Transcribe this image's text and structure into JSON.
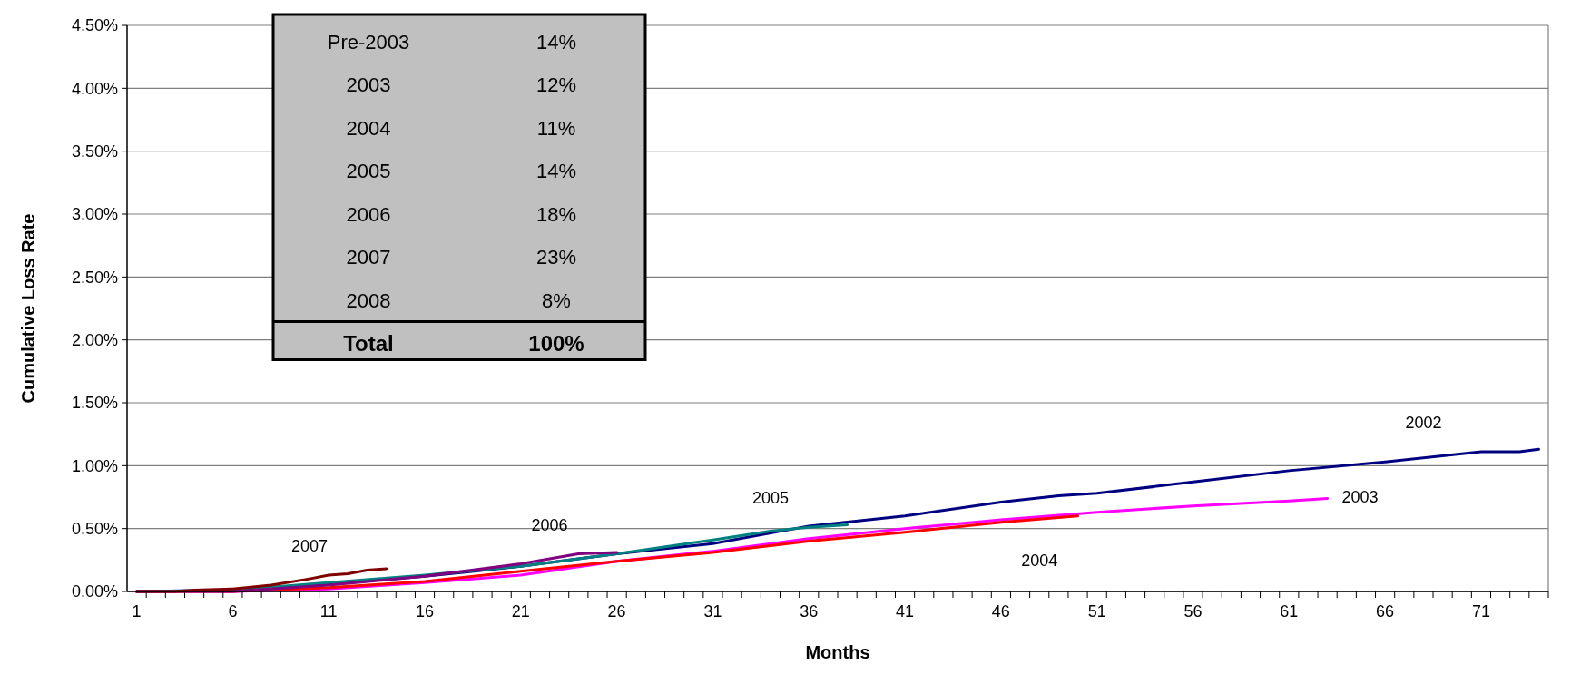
{
  "chart_data": {
    "type": "line",
    "xlabel": "Months",
    "ylabel": "Cumulative Loss Rate",
    "xlim": [
      0.5,
      74.5
    ],
    "ylim": [
      0,
      4.5
    ],
    "xticks": [
      {
        "value": 1,
        "label": "1"
      },
      {
        "value": 6,
        "label": "6"
      },
      {
        "value": 11,
        "label": "11"
      },
      {
        "value": 16,
        "label": "16"
      },
      {
        "value": 21,
        "label": "21"
      },
      {
        "value": 26,
        "label": "26"
      },
      {
        "value": 31,
        "label": "31"
      },
      {
        "value": 36,
        "label": "36"
      },
      {
        "value": 41,
        "label": "41"
      },
      {
        "value": 46,
        "label": "46"
      },
      {
        "value": 51,
        "label": "51"
      },
      {
        "value": 56,
        "label": "56"
      },
      {
        "value": 61,
        "label": "61"
      },
      {
        "value": 66,
        "label": "66"
      },
      {
        "value": 71,
        "label": "71"
      }
    ],
    "yticks": [
      {
        "value": 0,
        "label": "0.00%"
      },
      {
        "value": 0.5,
        "label": "0.50%"
      },
      {
        "value": 1,
        "label": "1.00%"
      },
      {
        "value": 1.5,
        "label": "1.50%"
      },
      {
        "value": 2,
        "label": "2.00%"
      },
      {
        "value": 2.5,
        "label": "2.50%"
      },
      {
        "value": 3,
        "label": "3.00%"
      },
      {
        "value": 3.5,
        "label": "3.50%"
      },
      {
        "value": 4,
        "label": "4.00%"
      },
      {
        "value": 4.5,
        "label": "4.50%"
      }
    ],
    "grid": "y",
    "line_style": "solid",
    "series": [
      {
        "name": "2002",
        "color": "#000080",
        "x": [
          1,
          6,
          11,
          16,
          21,
          26,
          31,
          36,
          41,
          46,
          49,
          51,
          56,
          61,
          66,
          71,
          73,
          74
        ],
        "values": [
          0,
          0.01,
          0.06,
          0.12,
          0.2,
          0.3,
          0.38,
          0.52,
          0.6,
          0.71,
          0.76,
          0.78,
          0.87,
          0.96,
          1.03,
          1.11,
          1.11,
          1.13
        ]
      },
      {
        "name": "2003",
        "color": "#ff00ff",
        "x": [
          1,
          6,
          11,
          16,
          21,
          26,
          31,
          36,
          41,
          46,
          51,
          56,
          61,
          63
        ],
        "values": [
          0,
          0,
          0.02,
          0.07,
          0.13,
          0.24,
          0.32,
          0.42,
          0.5,
          0.57,
          0.63,
          0.68,
          0.72,
          0.74
        ]
      },
      {
        "name": "2004",
        "color": "#ff0000",
        "x": [
          1,
          6,
          11,
          16,
          21,
          26,
          31,
          36,
          41,
          46,
          50
        ],
        "values": [
          0,
          0,
          0.03,
          0.08,
          0.16,
          0.24,
          0.31,
          0.4,
          0.47,
          0.55,
          0.6
        ]
      },
      {
        "name": "2005",
        "color": "#008080",
        "x": [
          1,
          6,
          11,
          16,
          21,
          26,
          31,
          34,
          36,
          38
        ],
        "values": [
          0,
          0.01,
          0.07,
          0.13,
          0.2,
          0.3,
          0.41,
          0.48,
          0.51,
          0.53
        ]
      },
      {
        "name": "2006",
        "color": "#800080",
        "x": [
          1,
          6,
          11,
          16,
          21,
          24,
          26
        ],
        "values": [
          0,
          0,
          0.05,
          0.12,
          0.22,
          0.3,
          0.31
        ]
      },
      {
        "name": "2007",
        "color": "#800000",
        "x": [
          1,
          3,
          4,
          6,
          8,
          10,
          11,
          12,
          13,
          14
        ],
        "values": [
          0,
          0,
          0.01,
          0.02,
          0.05,
          0.1,
          0.13,
          0.14,
          0.17,
          0.18
        ]
      }
    ],
    "annotations": [
      "Pre-2003",
      "14%",
      "2003",
      "12%",
      "2004",
      "11%",
      "2005",
      "14%",
      "2006",
      "18%",
      "2007",
      "23%",
      "2008",
      "8%",
      "Total",
      "100%"
    ]
  }
}
